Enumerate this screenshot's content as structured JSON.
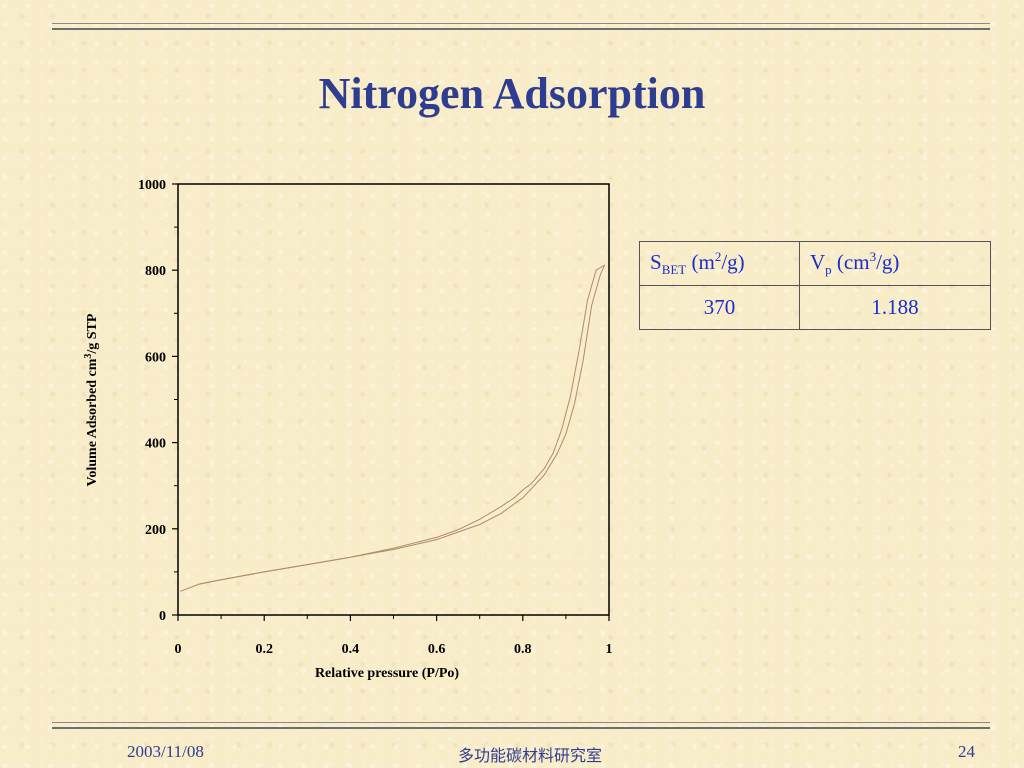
{
  "slide": {
    "title": "Nitrogen Adsorption",
    "footer_date": "2003/11/08",
    "footer_lab": "多功能碳材料研究室",
    "page_number": "24"
  },
  "table": {
    "header_sbet_main": "S",
    "header_sbet_sub": "BET",
    "header_sbet_unit_pre": " (m",
    "header_sbet_unit_sup": "2",
    "header_sbet_unit_post": "/g)",
    "header_vp_main": "V",
    "header_vp_sub": "p",
    "header_vp_unit_pre": " (cm",
    "header_vp_unit_sup": "3",
    "header_vp_unit_post": "/g)",
    "sbet_value": "370",
    "vp_value": "1.188"
  },
  "chart_data": {
    "type": "line",
    "xlabel": "Relative pressure (P/Po)",
    "ylabel_pre": "Volume Adsorbed cm",
    "ylabel_sup": "3",
    "ylabel_post": "/g STP",
    "xlim": [
      0,
      1
    ],
    "ylim": [
      0,
      1000
    ],
    "x_ticks": [
      "0",
      "0.2",
      "0.4",
      "0.6",
      "0.8",
      "1"
    ],
    "y_ticks": [
      "0",
      "200",
      "400",
      "600",
      "800",
      "1000"
    ],
    "line_color": "#b08a6a",
    "series": [
      {
        "x": [
          0.005,
          0.05,
          0.1,
          0.2,
          0.3,
          0.4,
          0.5,
          0.6,
          0.7,
          0.75,
          0.8,
          0.85,
          0.88,
          0.9,
          0.92,
          0.94,
          0.96,
          0.98,
          0.99
        ],
        "y": [
          55,
          72,
          82,
          100,
          117,
          134,
          152,
          175,
          210,
          236,
          272,
          325,
          375,
          420,
          490,
          590,
          720,
          790,
          812
        ]
      },
      {
        "x": [
          0.99,
          0.97,
          0.95,
          0.93,
          0.91,
          0.89,
          0.87,
          0.85,
          0.82,
          0.8,
          0.78,
          0.75,
          0.7,
          0.65,
          0.6,
          0.5,
          0.4,
          0.3,
          0.2,
          0.1,
          0.05
        ],
        "y": [
          812,
          800,
          730,
          610,
          505,
          430,
          375,
          340,
          305,
          290,
          272,
          252,
          222,
          198,
          180,
          155,
          134,
          117,
          100,
          82,
          72
        ]
      }
    ]
  }
}
